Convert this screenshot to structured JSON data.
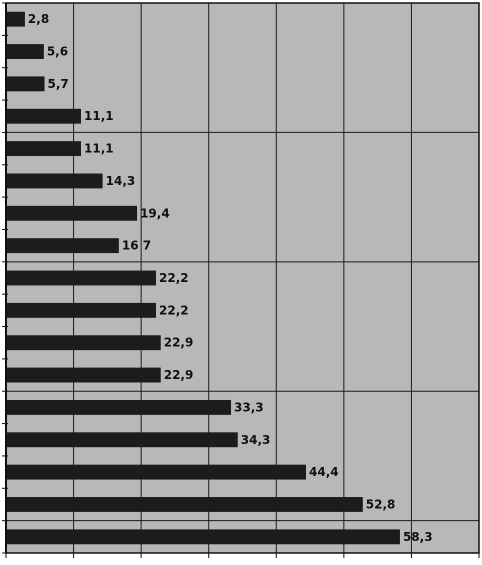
{
  "chart_data": {
    "type": "bar",
    "orientation": "horizontal",
    "categories": [
      "",
      "",
      "",
      "",
      "",
      "",
      "",
      "",
      "",
      "",
      "",
      "",
      "",
      "",
      "",
      "",
      ""
    ],
    "values": [
      2.8,
      5.6,
      5.7,
      11.1,
      11.1,
      14.3,
      19.4,
      16.7,
      22.2,
      22.2,
      22.9,
      22.9,
      33.3,
      34.3,
      44.4,
      52.8,
      58.3
    ],
    "data_labels": [
      "2,8",
      "5,6",
      "5,7",
      "11,1",
      "11,1",
      "14,3",
      "19,4",
      "16 7",
      "22,2",
      "22,2",
      "22,9",
      "22,9",
      "33,3",
      "34,3",
      "44,4",
      "52,8",
      "58,3"
    ],
    "title": "",
    "xlabel": "",
    "ylabel": "",
    "xlim": [
      0,
      70
    ],
    "grid": true,
    "legend": "none",
    "colors": {
      "plot_background": "#b8b8b8",
      "bar": "#1c1c1c",
      "gridline": "#1a1a1a",
      "axis": "#111111",
      "label_text": "#111111"
    }
  }
}
